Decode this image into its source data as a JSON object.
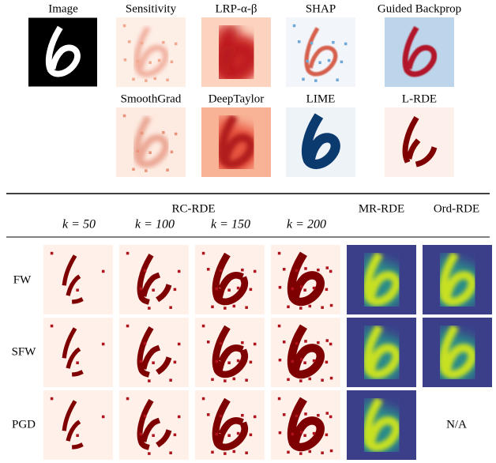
{
  "header_row1": [
    "Image",
    "Sensitivity",
    "LRP-α-β",
    "SHAP",
    "Guided Backprop"
  ],
  "header_row2": [
    "SmoothGrad",
    "DeepTaylor",
    "LIME",
    "L-RDE"
  ],
  "table": {
    "group_label": "RC-RDE",
    "k_labels": [
      "k = 50",
      "k = 100",
      "k = 150",
      "k = 200"
    ],
    "columns": [
      "MR-RDE",
      "Ord-RDE"
    ],
    "rows": [
      "FW",
      "SFW",
      "PGD"
    ],
    "na": "N/A"
  }
}
